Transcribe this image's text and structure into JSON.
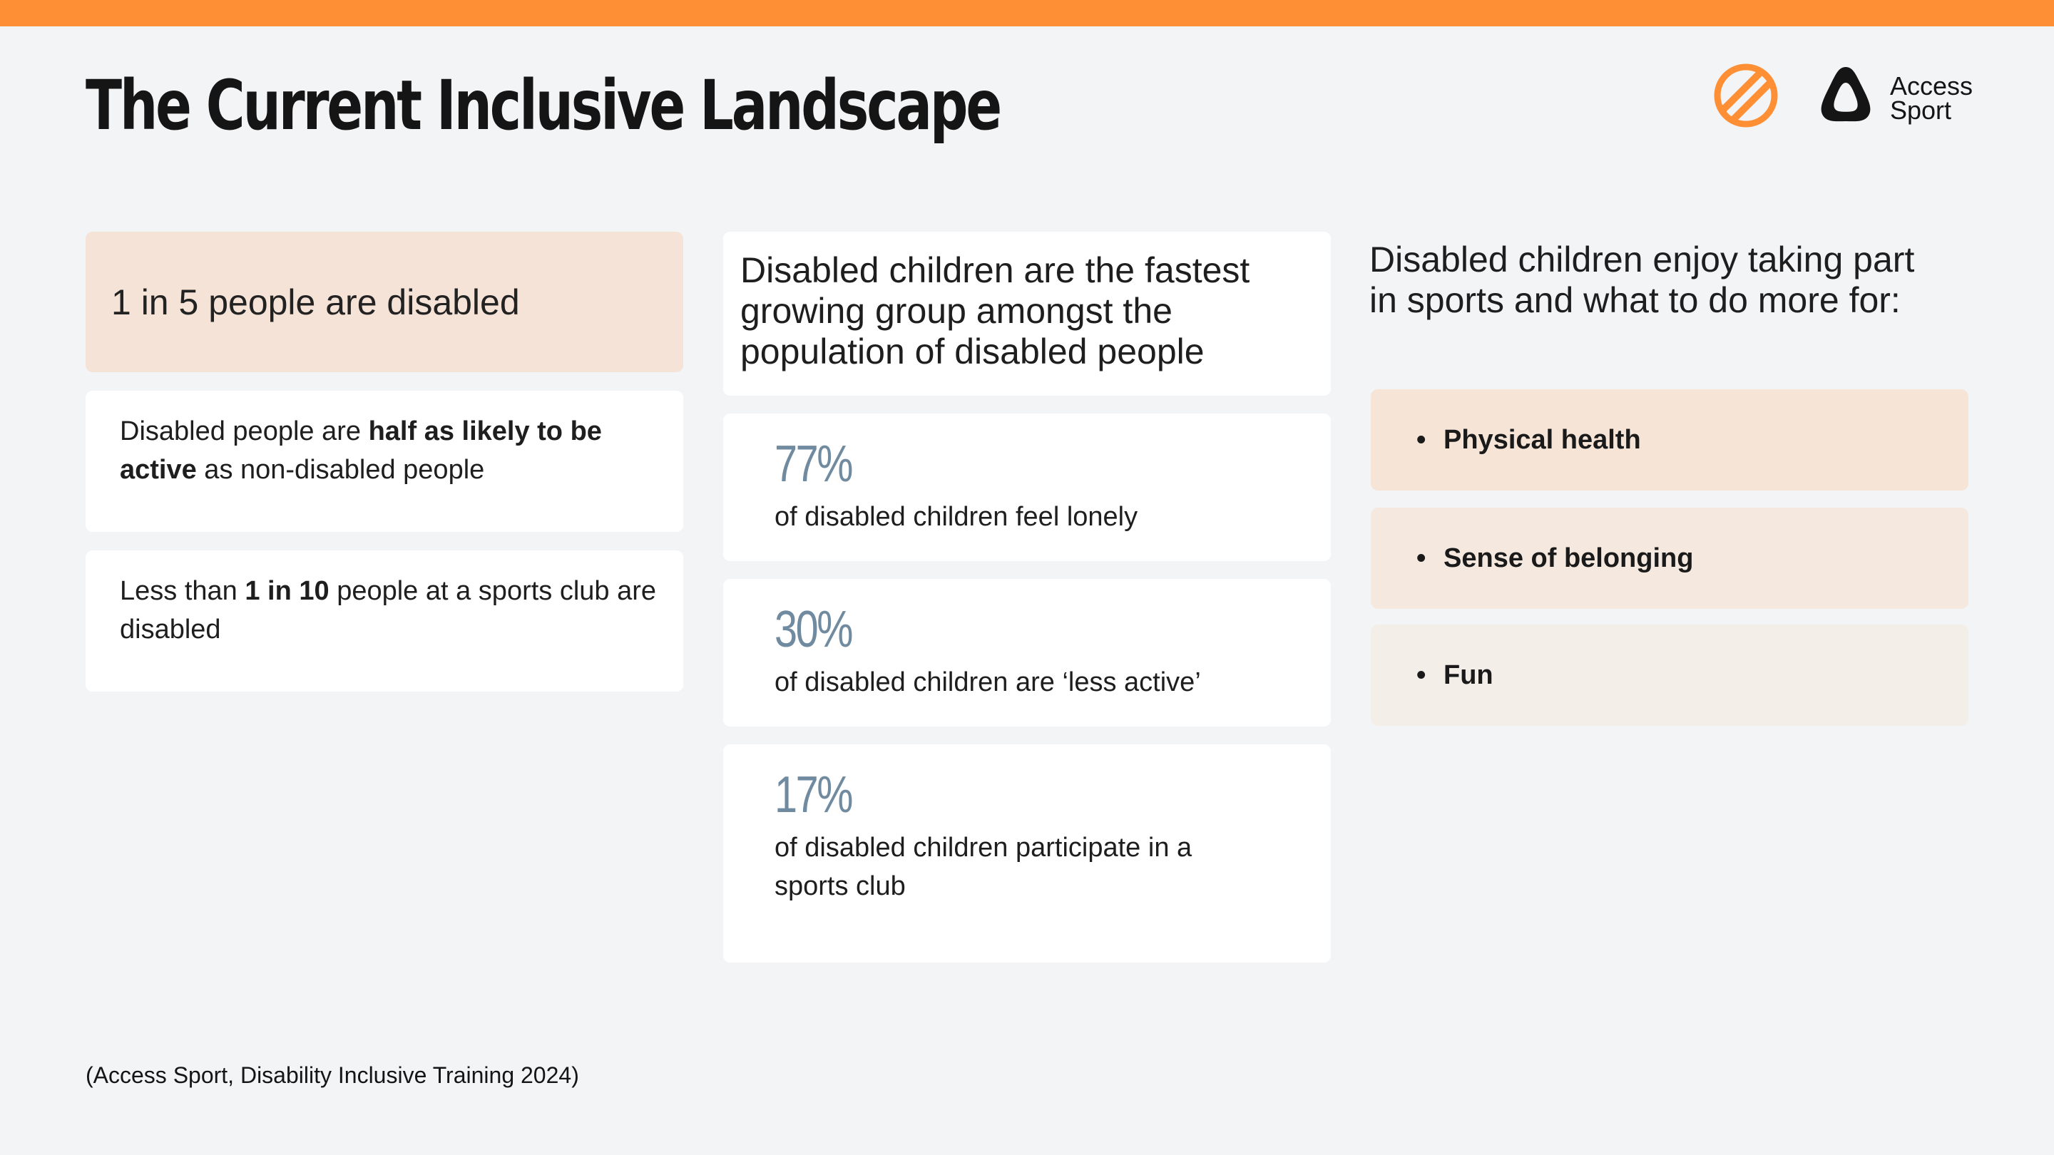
{
  "page": {
    "title": "The Current Inclusive Landscape"
  },
  "brand": {
    "accent_color": "#ff8f35",
    "logo_icon": "striped-circle-icon",
    "access_icon": "rounded-triangle-icon",
    "access_line1": "Access",
    "access_line2": "Sport"
  },
  "column1": {
    "highlight": "1 in 5 people are disabled",
    "fact1": {
      "pre": "Disabled people are ",
      "bold": "half as likely to be active",
      "post": " as non-disabled people"
    },
    "fact2": {
      "pre": "Less than ",
      "bold": "1 in 10",
      "post": " people at a sports club are disabled"
    }
  },
  "column2": {
    "heading": "Disabled children are the fastest growing group amongst the population of disabled people",
    "stats": [
      {
        "value": "77%",
        "label": "of disabled children feel lonely"
      },
      {
        "value": "30%",
        "label": "of disabled children are ‘less active’"
      },
      {
        "value": "17%",
        "label": "of disabled children participate in a sports club"
      }
    ]
  },
  "column3": {
    "heading": "Disabled children enjoy taking part in sports and what to do more for:",
    "bullet": "•",
    "items": [
      {
        "label": "Physical health",
        "color": "#f6e4d7"
      },
      {
        "label": "Sense of belonging",
        "color": "#f5e9df"
      },
      {
        "label": "Fun",
        "color": "#f4eee9"
      }
    ]
  },
  "footer": {
    "source": "(Access Sport, Disability Inclusive Training 2024)"
  }
}
